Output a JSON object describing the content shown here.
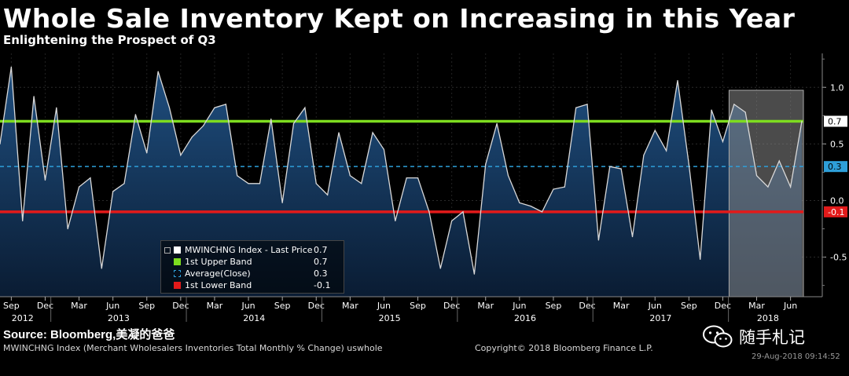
{
  "header": {
    "title": "Whole Sale Inventory Kept on Increasing in this Year",
    "subtitle": "Enlightening the Prospect of Q3"
  },
  "footer": {
    "source": "Source: Bloomberg,美凝的爸爸",
    "footnote": "MWINCHNG Index (Merchant Wholesalers Inventories Total Monthly % Change) uswhole",
    "copyright": "Copyright© 2018 Bloomberg Finance L.P.",
    "timestamp": "29-Aug-2018 09:14:52",
    "watermark": "随手札记"
  },
  "colors": {
    "series": "#d9d9d9",
    "area_top": "#1f4f80",
    "area_bottom": "#0a1c33",
    "upper_band": "#7ddc1f",
    "lower_band": "#e21a1a",
    "average": "#2e9fd9",
    "highlight": "#888888"
  },
  "legend": {
    "rows": [
      {
        "label": "MWINCHNG Index - Last Price",
        "value": "0.7",
        "color": "#ffffff",
        "style": "fill"
      },
      {
        "label": "1st Upper Band",
        "value": "0.7",
        "color": "#7ddc1f",
        "style": "fill"
      },
      {
        "label": "Average(Close)",
        "value": "0.3",
        "color": "#2e9fd9",
        "style": "dashed"
      },
      {
        "label": "1st Lower Band",
        "value": "-0.1",
        "color": "#e21a1a",
        "style": "fill"
      }
    ]
  },
  "chart_data": {
    "type": "area",
    "title": "Whole Sale Inventory Kept on Increasing in this Year",
    "subtitle": "Enlightening the Prospect of Q3",
    "xlabel": "",
    "ylabel": "",
    "ylim": [
      -0.85,
      1.3
    ],
    "y_ticks": [
      1.0,
      0.5,
      0.0,
      -0.5
    ],
    "y_tick_labels": [
      "1.0",
      "0.5",
      "0.0",
      "-0.5"
    ],
    "grid": true,
    "x_start": "2012-08",
    "x_end": "2018-07",
    "month_ticks": [
      "Sep",
      "Dec",
      "Mar",
      "Jun",
      "Sep",
      "Dec",
      "Mar",
      "Jun",
      "Sep",
      "Dec",
      "Mar",
      "Jun",
      "Sep",
      "Dec",
      "Mar",
      "Jun",
      "Sep",
      "Dec",
      "Mar",
      "Jun",
      "Sep",
      "Dec",
      "Mar",
      "Jun"
    ],
    "year_labels": [
      "2012",
      "2013",
      "2014",
      "2015",
      "2016",
      "2017",
      "2018"
    ],
    "series": [
      {
        "name": "MWINCHNG Index - Last Price",
        "values": [
          0.5,
          1.18,
          -0.18,
          0.92,
          0.18,
          0.82,
          -0.25,
          0.12,
          0.2,
          -0.6,
          0.08,
          0.15,
          0.76,
          0.42,
          1.14,
          0.82,
          0.4,
          0.56,
          0.66,
          0.82,
          0.85,
          0.22,
          0.15,
          0.15,
          0.72,
          -0.02,
          0.68,
          0.82,
          0.15,
          0.05,
          0.6,
          0.22,
          0.15,
          0.6,
          0.45,
          -0.18,
          0.2,
          0.2,
          -0.1,
          -0.6,
          -0.18,
          -0.1,
          -0.65,
          0.32,
          0.68,
          0.22,
          -0.02,
          -0.05,
          -0.1,
          0.1,
          0.12,
          0.82,
          0.85,
          -0.35,
          0.3,
          0.28,
          -0.32,
          0.4,
          0.62,
          0.44,
          1.06,
          0.32,
          -0.52,
          0.8,
          0.52,
          0.85,
          0.78,
          0.22,
          0.12,
          0.35,
          0.12,
          0.7
        ]
      },
      {
        "name": "1st Upper Band",
        "values": [
          0.7
        ],
        "constant": true
      },
      {
        "name": "Average(Close)",
        "values": [
          0.3
        ],
        "constant": true
      },
      {
        "name": "1st Lower Band",
        "values": [
          -0.1
        ],
        "constant": true
      }
    ],
    "right_labels": [
      "0.7",
      "0.3",
      "-0.1"
    ],
    "highlight_region": {
      "from": "2017-12",
      "to": "2018-07"
    }
  }
}
